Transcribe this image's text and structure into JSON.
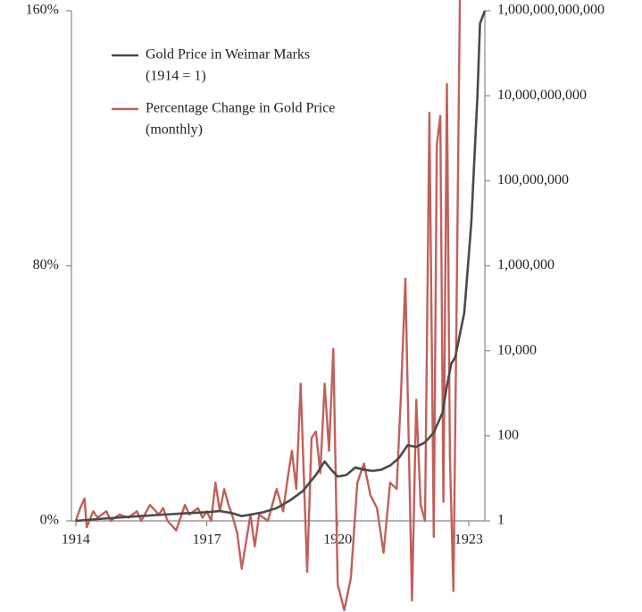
{
  "chart_data": {
    "type": "line",
    "xlim": [
      1913.9,
      1923.37
    ],
    "xticks": [
      1914,
      1917,
      1920,
      1923
    ],
    "ylim": [
      0,
      160
    ],
    "yticks": [
      {
        "value": 0,
        "label": "0%"
      },
      {
        "value": 80,
        "label": "80%"
      },
      {
        "value": 160,
        "label": "160%"
      }
    ],
    "y2lim": [
      1,
      1000000000000
    ],
    "y2scale": "log",
    "y2ticks": [
      1,
      100,
      {
        "value": 10000,
        "label": "10,000"
      },
      {
        "value": 1000000,
        "label": "1,000,000"
      },
      {
        "value": 100000000,
        "label": "100,000,000"
      },
      {
        "value": 10000000000,
        "label": "10,000,000,000"
      },
      {
        "value": 1000000000000,
        "label": "1,000,000,000,000"
      }
    ],
    "legend": "top-left",
    "series": [
      {
        "name": [
          "Gold Price in Weimar Marks",
          "(1914 = 1)"
        ],
        "color": "#4a4a4a",
        "axis": "y2",
        "x": [
          1914,
          1914.5,
          1915,
          1915.5,
          1916,
          1916.5,
          1917,
          1917.3,
          1917.6,
          1917.8,
          1918,
          1918.3,
          1918.6,
          1918.9,
          1919.2,
          1919.5,
          1919.7,
          1919.85,
          1920.0,
          1920.2,
          1920.4,
          1920.6,
          1920.8,
          1921.0,
          1921.2,
          1921.4,
          1921.6,
          1921.8,
          1922.0,
          1922.2,
          1922.4,
          1922.5,
          1922.6,
          1922.69,
          1922.9,
          1923.06,
          1923.2,
          1923.26,
          1923.37
        ],
        "values": [
          1,
          1.1,
          1.2,
          1.3,
          1.4,
          1.5,
          1.6,
          1.7,
          1.5,
          1.3,
          1.4,
          1.6,
          2,
          3,
          5,
          12,
          25,
          16,
          11,
          12,
          18,
          16,
          15,
          16,
          20,
          30,
          60,
          55,
          70,
          120,
          350,
          1500,
          5000,
          7000,
          80000,
          10000000,
          10000000000,
          500000000000,
          1000000000000
        ]
      },
      {
        "name": [
          "Percentage Change in Gold Price",
          "(monthly)"
        ],
        "color": "#c0605a",
        "axis": "y",
        "x": [
          1914.0,
          1914.1,
          1914.2,
          1914.25,
          1914.4,
          1914.5,
          1914.7,
          1914.8,
          1915.0,
          1915.2,
          1915.4,
          1915.5,
          1915.7,
          1915.9,
          1916.0,
          1916.1,
          1916.3,
          1916.5,
          1916.6,
          1916.8,
          1916.9,
          1917.0,
          1917.1,
          1917.2,
          1917.3,
          1917.4,
          1917.5,
          1917.6,
          1917.7,
          1917.8,
          1918.0,
          1918.1,
          1918.2,
          1918.4,
          1918.6,
          1918.75,
          1918.85,
          1918.95,
          1919.05,
          1919.15,
          1919.3,
          1919.4,
          1919.5,
          1919.6,
          1919.7,
          1919.8,
          1919.9,
          1920.0,
          1920.15,
          1920.3,
          1920.45,
          1920.6,
          1920.75,
          1920.9,
          1921.05,
          1921.2,
          1921.35,
          1921.45,
          1921.55,
          1921.7,
          1921.8,
          1921.9,
          1922.0,
          1922.1,
          1922.2,
          1922.27,
          1922.35,
          1922.42,
          1922.5,
          1922.57,
          1922.65,
          1922.73,
          1922.8,
          1922.85
        ],
        "values": [
          0,
          4,
          7,
          -2,
          3,
          1,
          3,
          0,
          2,
          1,
          3,
          0,
          5,
          2,
          4,
          0,
          -3,
          5,
          2,
          4,
          1,
          3,
          0,
          12,
          3,
          10,
          5,
          1,
          -4,
          -15,
          2,
          -8,
          2,
          0,
          10,
          3,
          13,
          22,
          10,
          43,
          -16,
          26,
          28,
          15,
          43,
          22,
          54,
          -20,
          -28,
          -18,
          12,
          18,
          8,
          4,
          -10,
          12,
          10,
          40,
          76,
          -25,
          38,
          5,
          0,
          128,
          -5,
          118,
          127,
          6,
          137,
          20,
          -22,
          76,
          165,
          170
        ]
      }
    ]
  }
}
